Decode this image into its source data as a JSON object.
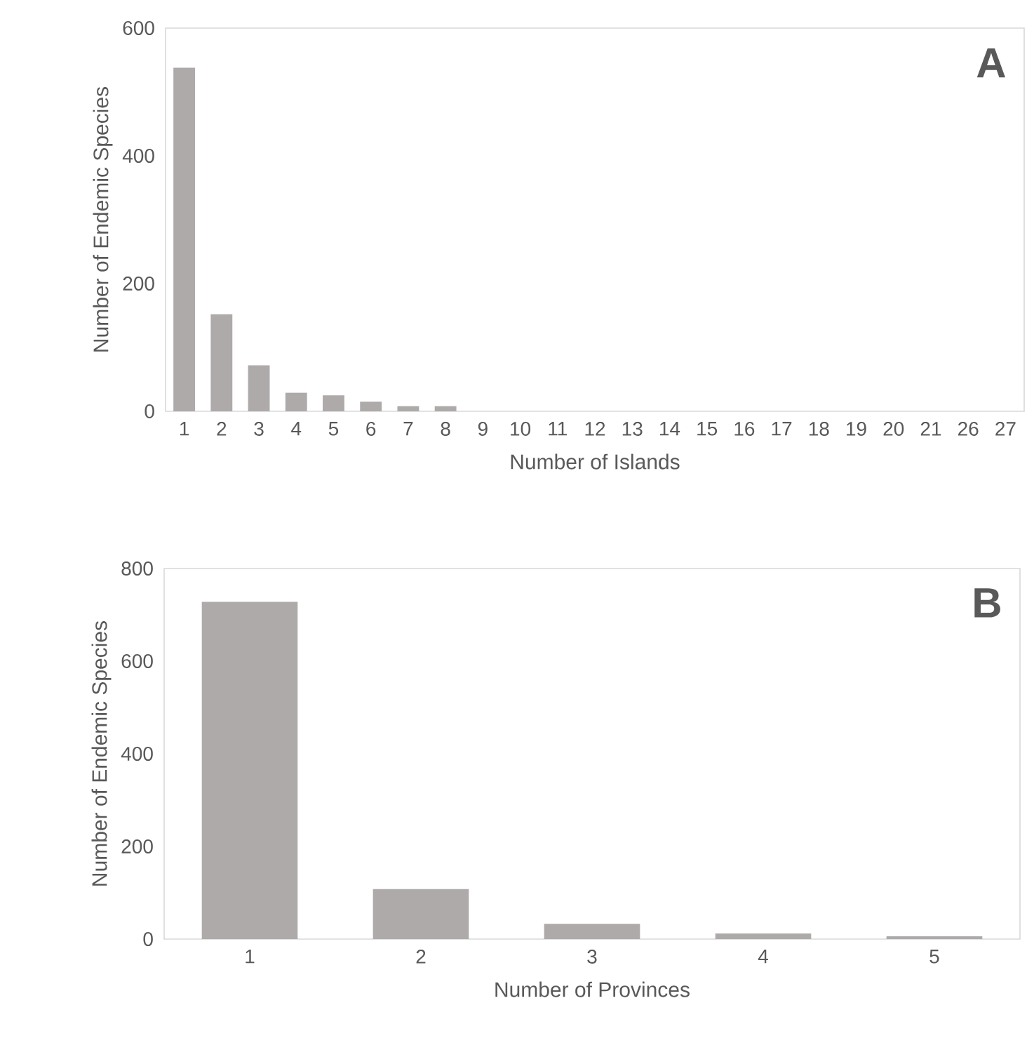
{
  "chart_data": [
    {
      "type": "bar",
      "categories": [
        "1",
        "2",
        "3",
        "4",
        "5",
        "6",
        "7",
        "8",
        "9",
        "10",
        "11",
        "12",
        "13",
        "14",
        "15",
        "16",
        "17",
        "18",
        "19",
        "20",
        "21",
        "26",
        "27"
      ],
      "values": [
        538,
        152,
        72,
        29,
        25,
        15,
        8,
        8,
        null,
        null,
        null,
        null,
        null,
        null,
        null,
        null,
        null,
        null,
        null,
        null,
        null,
        null,
        null
      ],
      "color": "#aeaaaa",
      "ylim": [
        0,
        600
      ],
      "yticks": [
        0,
        200,
        400,
        600
      ],
      "xlabel": "Number of Islands",
      "ylabel": "Number of Endemic Species",
      "annotations": [
        "A"
      ]
    },
    {
      "type": "bar",
      "categories": [
        "1",
        "2",
        "3",
        "4",
        "5"
      ],
      "values": [
        728,
        108,
        33,
        12,
        6
      ],
      "color": "#aeaaaa",
      "ylim": [
        0,
        800
      ],
      "yticks": [
        0,
        200,
        400,
        600,
        800
      ],
      "xlabel": "Number of Provinces",
      "ylabel": "Number of Endemic Species",
      "annotations": [
        "B"
      ]
    }
  ]
}
